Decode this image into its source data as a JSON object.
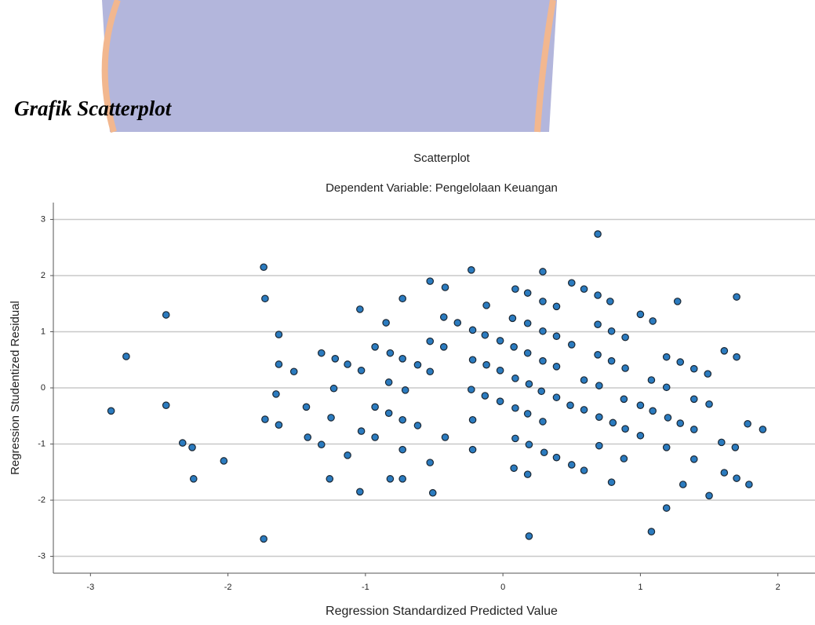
{
  "heading": "Grafik Scatterplot",
  "chart_data": {
    "type": "scatter",
    "title": "Scatterplot",
    "subtitle": "Dependent Variable: Pengelolaan Keuangan",
    "x_label": "Regression Standardized Predicted Value",
    "y_label": "Regression Studentized Residual",
    "color": "#2b7bbf",
    "grid": true,
    "xlim": [
      -3.27,
      2.27
    ],
    "ylim": [
      -3.3,
      3.3
    ],
    "xticks": [
      -3,
      -2,
      -1,
      0,
      1,
      2
    ],
    "yticks": [
      -3,
      -2,
      -1,
      0,
      1,
      2,
      3
    ],
    "x": [
      -2.85,
      -2.74,
      -2.45,
      -2.45,
      -2.33,
      -2.26,
      -2.25,
      -2.03,
      -1.74,
      -1.73,
      -1.73,
      -1.74,
      -1.63,
      -1.63,
      -1.65,
      -1.63,
      -1.52,
      -1.43,
      -1.42,
      -1.32,
      -1.32,
      -1.26,
      -1.25,
      -1.22,
      -1.23,
      -1.13,
      -1.13,
      -1.04,
      -1.03,
      -1.03,
      -1.04,
      -0.93,
      -0.93,
      -0.93,
      -0.85,
      -0.83,
      -0.83,
      -0.82,
      -0.82,
      -0.73,
      -0.73,
      -0.71,
      -0.73,
      -0.73,
      -0.73,
      -0.62,
      -0.62,
      -0.53,
      -0.53,
      -0.53,
      -0.53,
      -0.51,
      -0.43,
      -0.43,
      -0.42,
      -0.42,
      -0.33,
      -0.23,
      -0.22,
      -0.22,
      -0.23,
      -0.22,
      -0.22,
      -0.13,
      -0.12,
      -0.13,
      -0.12,
      -0.02,
      -0.02,
      -0.02,
      0.07,
      0.08,
      0.09,
      0.09,
      0.09,
      0.08,
      0.09,
      0.18,
      0.18,
      0.18,
      0.19,
      0.18,
      0.19,
      0.18,
      0.19,
      0.29,
      0.29,
      0.29,
      0.29,
      0.28,
      0.29,
      0.3,
      0.39,
      0.39,
      0.39,
      0.39,
      0.39,
      0.49,
      0.5,
      0.5,
      0.5,
      0.59,
      0.59,
      0.59,
      0.59,
      0.69,
      0.69,
      0.69,
      0.69,
      0.7,
      0.7,
      0.7,
      0.78,
      0.79,
      0.79,
      0.8,
      0.79,
      0.89,
      0.89,
      0.88,
      0.89,
      0.88,
      1.0,
      1.0,
      1.0,
      1.08,
      1.09,
      1.09,
      1.08,
      1.19,
      1.19,
      1.2,
      1.19,
      1.19,
      1.27,
      1.29,
      1.29,
      1.31,
      1.39,
      1.39,
      1.39,
      1.39,
      1.49,
      1.5,
      1.5,
      1.61,
      1.59,
      1.61,
      1.7,
      1.7,
      1.69,
      1.7,
      1.78,
      1.79,
      1.89
    ],
    "values": [
      -0.41,
      0.56,
      1.3,
      -0.31,
      -0.98,
      -1.06,
      -1.62,
      -1.3,
      2.15,
      1.59,
      -0.56,
      -2.69,
      0.95,
      0.42,
      -0.11,
      -0.66,
      0.29,
      -0.34,
      -0.88,
      0.62,
      -1.01,
      -1.62,
      -0.53,
      0.52,
      -0.01,
      0.42,
      -1.2,
      1.4,
      0.31,
      -0.77,
      -1.85,
      0.73,
      -0.34,
      -0.88,
      1.16,
      0.1,
      -0.45,
      -1.62,
      0.62,
      1.59,
      0.52,
      -0.04,
      -0.57,
      -1.1,
      -1.62,
      0.41,
      -0.67,
      1.9,
      0.83,
      0.29,
      -1.33,
      -1.87,
      1.26,
      0.73,
      1.79,
      -0.88,
      1.16,
      2.1,
      1.03,
      0.5,
      -0.03,
      -0.57,
      -1.1,
      0.94,
      0.41,
      -0.14,
      1.47,
      0.84,
      0.31,
      -0.24,
      1.24,
      0.73,
      0.17,
      -0.36,
      -0.9,
      -1.43,
      1.76,
      1.69,
      1.15,
      0.62,
      0.07,
      -0.46,
      -1.01,
      -1.54,
      -2.64,
      2.07,
      1.54,
      1.01,
      0.48,
      -0.06,
      -0.6,
      -1.15,
      1.45,
      0.92,
      0.38,
      -0.17,
      -1.24,
      -0.31,
      0.77,
      -1.37,
      1.87,
      1.76,
      -0.39,
      0.14,
      -1.47,
      2.74,
      1.65,
      1.13,
      0.59,
      0.04,
      -0.52,
      -1.03,
      1.54,
      1.01,
      0.48,
      -0.62,
      -1.68,
      0.9,
      0.35,
      -0.2,
      -0.73,
      -1.26,
      1.31,
      -0.31,
      -0.85,
      0.14,
      1.19,
      -0.41,
      -2.56,
      0.55,
      0.01,
      -0.53,
      -1.06,
      -2.14,
      1.54,
      0.46,
      -0.63,
      -1.72,
      0.34,
      -0.2,
      -0.74,
      -1.27,
      0.25,
      -0.29,
      -1.92,
      0.66,
      -0.97,
      -1.51,
      0.55,
      1.62,
      -1.06,
      -1.61,
      -0.64,
      -1.72,
      -0.74
    ]
  }
}
